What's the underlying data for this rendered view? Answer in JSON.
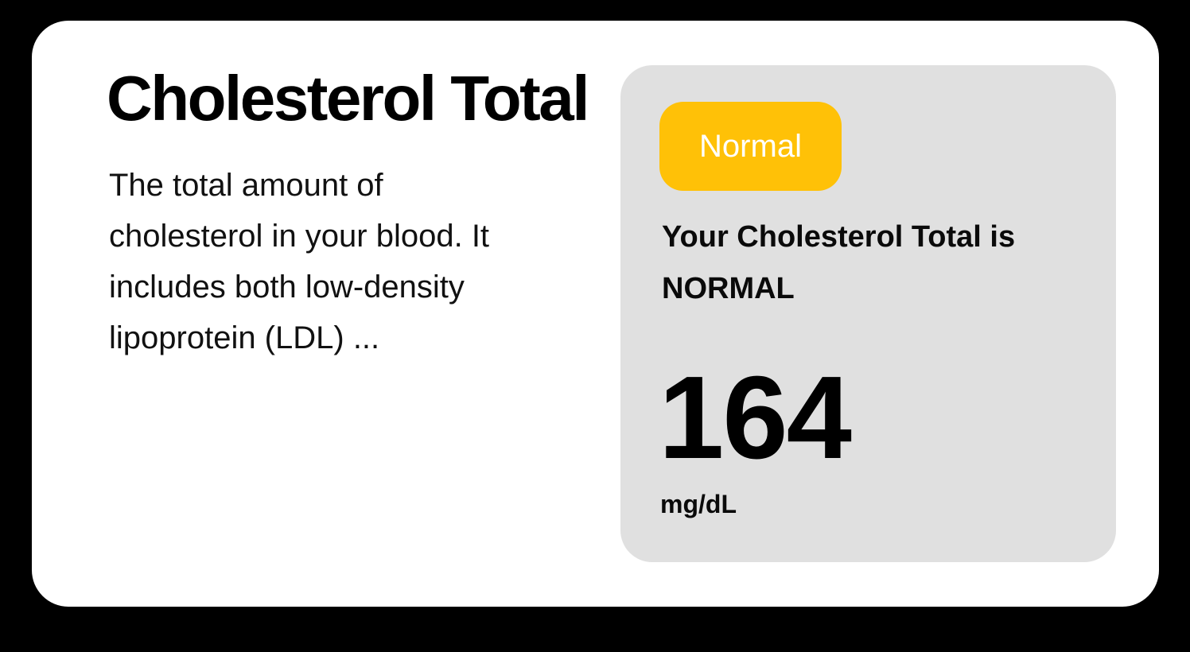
{
  "theme": {
    "background": "#000000",
    "card_bg": "#FFFFFF",
    "panel_bg": "#E0E0E0",
    "badge_bg": "#FFC107",
    "badge_text": "#FFFFFF",
    "text": "#000000"
  },
  "card": {
    "title": "Cholesterol Total",
    "description": "The total amount of cholesterol in your blood. It includes both low-density lipoprotein (LDL) ..."
  },
  "result_panel": {
    "badge": {
      "label": "Normal"
    },
    "status_lines": [
      "Your Cholesterol Total is",
      "NORMAL"
    ],
    "value": "164",
    "unit": "mg/dL"
  }
}
